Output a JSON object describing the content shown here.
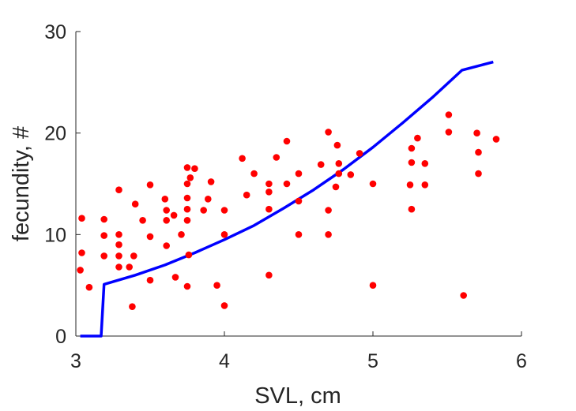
{
  "chart_data": {
    "type": "scatter",
    "xlabel": "SVL, cm",
    "ylabel": "fecundity, #",
    "xlim": [
      3,
      6
    ],
    "ylim": [
      0,
      30
    ],
    "xticks": [
      3,
      4,
      5,
      6
    ],
    "yticks": [
      0,
      10,
      20,
      30
    ],
    "xtick_labels": [
      "3",
      "4",
      "5",
      "6"
    ],
    "ytick_labels": [
      "0",
      "10",
      "20",
      "30"
    ],
    "grid": false,
    "legend": null,
    "series": [
      {
        "type": "scatter",
        "color": "#ff0000",
        "points": [
          [
            3.04,
            11.6
          ],
          [
            3.04,
            8.2
          ],
          [
            3.03,
            6.5
          ],
          [
            3.09,
            4.8
          ],
          [
            3.19,
            11.5
          ],
          [
            3.19,
            9.9
          ],
          [
            3.19,
            7.9
          ],
          [
            3.29,
            14.4
          ],
          [
            3.29,
            10.0
          ],
          [
            3.29,
            9.0
          ],
          [
            3.29,
            7.9
          ],
          [
            3.29,
            6.8
          ],
          [
            3.36,
            6.8
          ],
          [
            3.39,
            7.9
          ],
          [
            3.4,
            13.0
          ],
          [
            3.38,
            2.9
          ],
          [
            3.45,
            11.4
          ],
          [
            3.5,
            14.9
          ],
          [
            3.5,
            9.8
          ],
          [
            3.5,
            5.5
          ],
          [
            3.6,
            13.5
          ],
          [
            3.61,
            12.4
          ],
          [
            3.61,
            11.4
          ],
          [
            3.61,
            8.9
          ],
          [
            3.66,
            11.9
          ],
          [
            3.67,
            5.8
          ],
          [
            3.71,
            10.0
          ],
          [
            3.75,
            16.6
          ],
          [
            3.75,
            15.0
          ],
          [
            3.75,
            13.6
          ],
          [
            3.75,
            12.5
          ],
          [
            3.75,
            11.4
          ],
          [
            3.76,
            8.0
          ],
          [
            3.75,
            4.9
          ],
          [
            3.77,
            15.6
          ],
          [
            3.8,
            16.5
          ],
          [
            3.86,
            12.4
          ],
          [
            3.89,
            13.5
          ],
          [
            3.91,
            15.2
          ],
          [
            3.95,
            5.0
          ],
          [
            4.0,
            12.4
          ],
          [
            4.0,
            10.0
          ],
          [
            4.0,
            3.0
          ],
          [
            4.12,
            17.5
          ],
          [
            4.15,
            13.9
          ],
          [
            4.2,
            16.0
          ],
          [
            4.3,
            15.0
          ],
          [
            4.3,
            14.2
          ],
          [
            4.3,
            12.5
          ],
          [
            4.3,
            6.0
          ],
          [
            4.35,
            17.6
          ],
          [
            4.42,
            19.2
          ],
          [
            4.42,
            15.0
          ],
          [
            4.5,
            16.0
          ],
          [
            4.5,
            13.3
          ],
          [
            4.5,
            10.0
          ],
          [
            4.65,
            16.9
          ],
          [
            4.7,
            20.1
          ],
          [
            4.7,
            12.4
          ],
          [
            4.7,
            10.0
          ],
          [
            4.76,
            18.8
          ],
          [
            4.75,
            14.7
          ],
          [
            4.77,
            17.0
          ],
          [
            4.77,
            16.0
          ],
          [
            4.85,
            15.9
          ],
          [
            4.91,
            18.0
          ],
          [
            5.0,
            15.0
          ],
          [
            5.0,
            5.0
          ],
          [
            5.25,
            14.9
          ],
          [
            5.26,
            18.5
          ],
          [
            5.26,
            17.1
          ],
          [
            5.26,
            12.5
          ],
          [
            5.3,
            19.5
          ],
          [
            5.35,
            17.0
          ],
          [
            5.35,
            14.9
          ],
          [
            5.51,
            21.8
          ],
          [
            5.51,
            20.1
          ],
          [
            5.61,
            4.0
          ],
          [
            5.7,
            20.0
          ],
          [
            5.71,
            18.1
          ],
          [
            5.71,
            16.0
          ],
          [
            5.83,
            19.4
          ]
        ]
      },
      {
        "type": "line",
        "color": "#0000ff",
        "points": [
          [
            3.03,
            0
          ],
          [
            3.17,
            0
          ],
          [
            3.19,
            5.1
          ],
          [
            3.4,
            6.0
          ],
          [
            3.6,
            7.0
          ],
          [
            3.8,
            8.2
          ],
          [
            4.0,
            9.5
          ],
          [
            4.2,
            10.9
          ],
          [
            4.4,
            12.6
          ],
          [
            4.6,
            14.4
          ],
          [
            4.8,
            16.4
          ],
          [
            5.0,
            18.6
          ],
          [
            5.2,
            21.0
          ],
          [
            5.4,
            23.5
          ],
          [
            5.6,
            26.2
          ],
          [
            5.81,
            27.0
          ]
        ]
      }
    ]
  }
}
